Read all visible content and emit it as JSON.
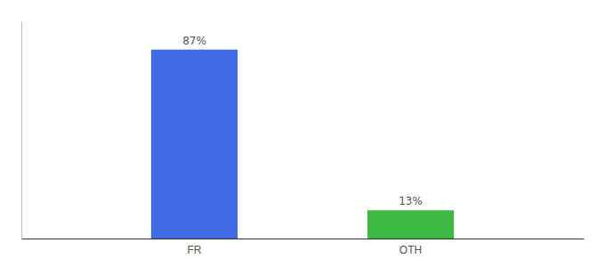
{
  "chart_data": {
    "type": "bar",
    "categories": [
      "FR",
      "OTH"
    ],
    "values": [
      87,
      13
    ],
    "value_labels": [
      "87%",
      "13%"
    ],
    "colors": [
      "#4169e1",
      "#3cb843"
    ],
    "ylim": [
      0,
      100
    ],
    "data_labels": true,
    "tick_labels": "x"
  }
}
